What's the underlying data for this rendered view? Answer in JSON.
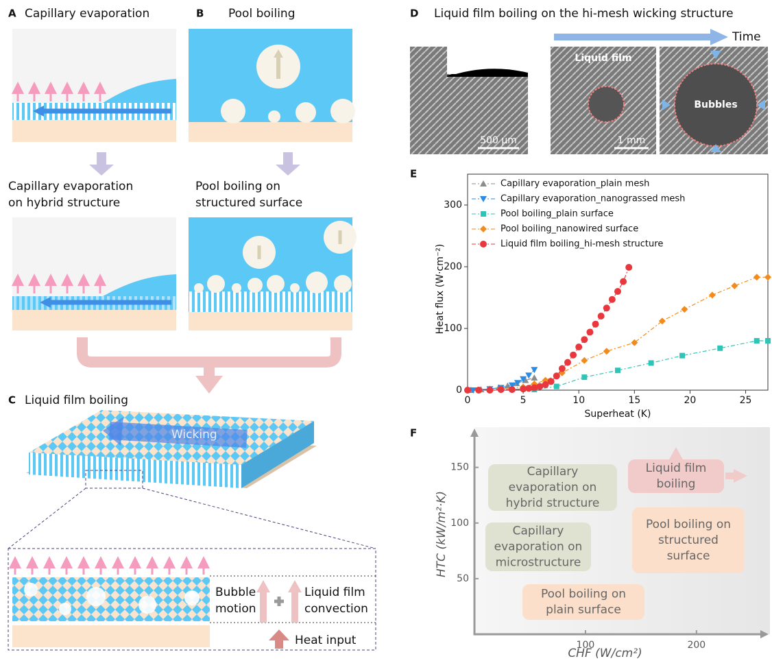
{
  "panels": {
    "A": {
      "letter": "A",
      "title": "Capillary evaporation"
    },
    "B": {
      "letter": "B",
      "title": "Pool boiling"
    },
    "A2": {
      "title": [
        "Capillary evaporation",
        "on hybrid structure"
      ]
    },
    "B2": {
      "title": [
        "Pool boiling on",
        "structured surface"
      ]
    },
    "C": {
      "letter": "C",
      "title": "Liquid film boiling",
      "wicking": "Wicking",
      "bubble_motion": [
        "Bubble",
        "motion"
      ],
      "convection": [
        "Liquid film",
        "convection"
      ],
      "heat_input": "Heat input"
    },
    "D": {
      "letter": "D",
      "title": "Liquid film boiling on the hi-mesh wicking structure",
      "time": "Time",
      "scale1": "500 μm",
      "liquid_film": "Liquid film",
      "bubbles": "Bubbles",
      "scale2": "1 mm"
    },
    "E": {
      "letter": "E"
    },
    "F": {
      "letter": "F"
    }
  },
  "chart_data": [
    {
      "type": "line",
      "xlabel": "Superheat (K)",
      "ylabel": "Heat flux (W·cm⁻²)",
      "xlim": [
        0,
        27
      ],
      "ylim": [
        0,
        350
      ],
      "xticks": [
        0,
        5,
        10,
        15,
        20,
        25
      ],
      "yticks": [
        0,
        100,
        200,
        300
      ],
      "series": [
        {
          "name": "Capillary evaporation_plain mesh",
          "color": "#8c8c8c",
          "marker": "triangle-up",
          "x": [
            0.3,
            1.2,
            2,
            2.8,
            3.6,
            4.4,
            5.2,
            6
          ],
          "values": [
            0,
            1,
            2,
            4,
            7,
            11,
            16,
            20
          ]
        },
        {
          "name": "Capillary evaporation_nanograssed mesh",
          "color": "#2b8ce6",
          "marker": "triangle-down",
          "x": [
            0.5,
            2,
            3,
            4,
            4.5,
            5,
            5.5,
            6
          ],
          "values": [
            0,
            2,
            4,
            8,
            12,
            18,
            24,
            33
          ]
        },
        {
          "name": "Pool boiling_plain surface",
          "color": "#2ec4b6",
          "marker": "square",
          "x": [
            6,
            8,
            10.5,
            13.5,
            16.5,
            19.3,
            22.7,
            26,
            27
          ],
          "values": [
            1,
            6,
            21,
            32,
            44,
            56,
            68,
            80,
            80
          ]
        },
        {
          "name": "Pool boiling_nanowired surface",
          "color": "#f28a1c",
          "marker": "diamond",
          "x": [
            3,
            5,
            6,
            7,
            8.5,
            10.5,
            12.5,
            15,
            17.5,
            19.5,
            22,
            24,
            26,
            27
          ],
          "values": [
            2,
            5,
            10,
            16,
            28,
            48,
            63,
            77,
            112,
            131,
            154,
            169,
            183,
            183
          ]
        },
        {
          "name": "Liquid film boiling_hi-mesh structure",
          "color": "#e8383d",
          "marker": "circle",
          "x": [
            0,
            1,
            2,
            3,
            4,
            5,
            5.5,
            6,
            6.5,
            7,
            7.5,
            8,
            8.5,
            9,
            9.5,
            10,
            10.5,
            11,
            11.5,
            12,
            12.5,
            13,
            13.5,
            14,
            14.5
          ],
          "values": [
            0,
            0,
            0,
            1,
            1,
            2,
            3,
            4,
            6,
            9,
            14,
            23,
            35,
            45,
            57,
            70,
            82,
            94,
            107,
            120,
            133,
            147,
            160,
            176,
            199
          ]
        }
      ]
    },
    {
      "type": "region",
      "xlabel": "CHF (W/cm²)",
      "ylabel": "HTC (kW/m²·K)",
      "xlim": [
        0,
        260
      ],
      "ylim": [
        0,
        180
      ],
      "xticks": [
        100,
        200
      ],
      "yticks": [
        50,
        100,
        150
      ],
      "regions": [
        {
          "lines": [
            "Capillary",
            "evaporation on",
            "hybrid structure"
          ],
          "color": "#dfe1d1"
        },
        {
          "lines": [
            "Liquid film",
            "boiling"
          ],
          "color": "#f1caca"
        },
        {
          "lines": [
            "Capillary",
            "evaporation on",
            "microstructure"
          ],
          "color": "#dfe1d1"
        },
        {
          "lines": [
            "Pool boiling on",
            "structured",
            "surface"
          ],
          "color": "#fbdfca"
        },
        {
          "lines": [
            "Pool boiling on",
            "plain surface"
          ],
          "color": "#fbdfca"
        }
      ]
    }
  ]
}
